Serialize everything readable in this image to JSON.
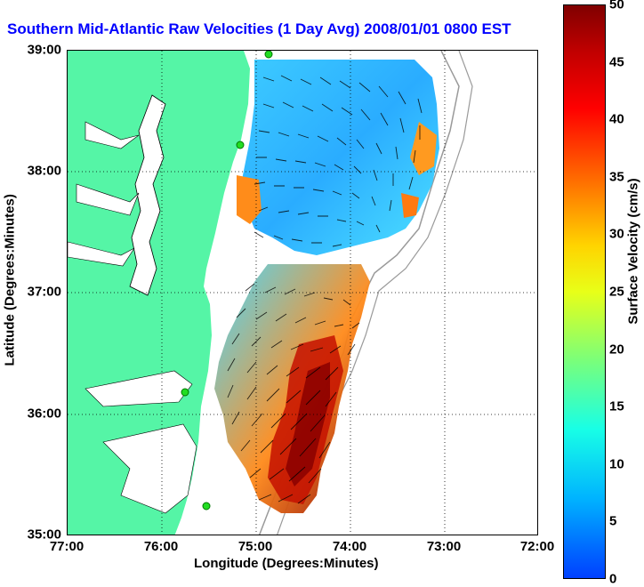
{
  "title": "Southern Mid-Atlantic Raw Velocities (1 Day Avg) 2008/01/01 0800 EST",
  "axes": {
    "xlabel": "Longitude (Degrees:Minutes)",
    "ylabel": "Latitude (Degrees:Minutes)",
    "xticks": [
      "77:00",
      "76:00",
      "75:00",
      "74:00",
      "73:00",
      "72:00"
    ],
    "yticks": [
      "39:00",
      "38:00",
      "37:00",
      "36:00",
      "35:00"
    ]
  },
  "colorbar": {
    "label": "Surface Velocity (cm/s)",
    "ticks": [
      "50",
      "45",
      "40",
      "35",
      "30",
      "25",
      "20",
      "15",
      "10",
      "5",
      "0"
    ],
    "range": [
      0,
      50
    ],
    "colormap": "jet"
  },
  "colors": {
    "title": "#0000ff",
    "land": "#55f5a6",
    "water": "#ffffff",
    "coast_line": "#000000",
    "bathymetry_line": "#9a9a9a",
    "station_marker": "#22dd22"
  }
}
